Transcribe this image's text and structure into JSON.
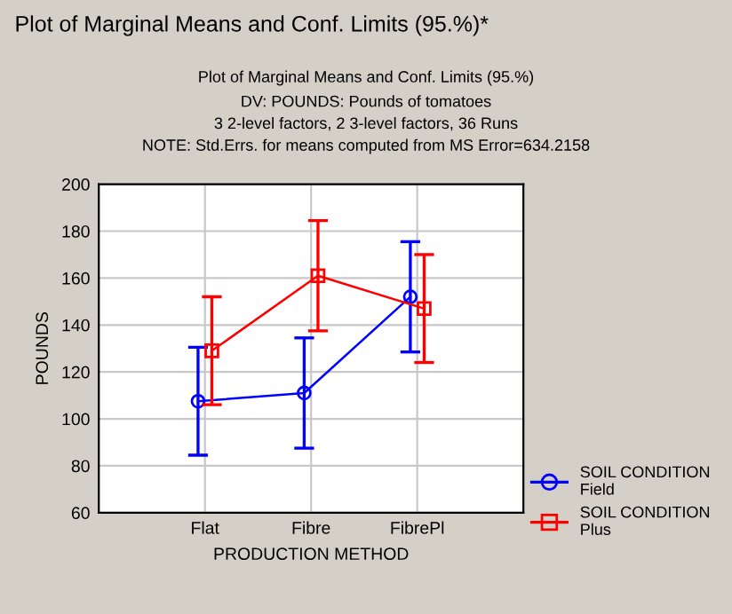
{
  "chart_data": {
    "type": "line",
    "title": "Plot of Marginal Means and Conf. Limits (95.%)",
    "subtitle": "DV: POUNDS: Pounds of tomatoes\n3 2-level factors, 2 3-level factors, 36 Runs\nNOTE: Std.Errs. for means computed from MS Error=634.2158",
    "annotations": [
      "Plot of Marginal Means and Conf. Limits (95.%)*"
    ],
    "xlabel": "PRODUCTION METHOD",
    "ylabel": "POUNDS",
    "categories": [
      "Flat",
      "Fibre",
      "FibrePl"
    ],
    "series": [
      {
        "name": "SOIL CONDITION\nField",
        "color": "#0000ff",
        "marker": "circle",
        "values": [
          107.5,
          111,
          152
        ],
        "errors": [
          23,
          23.5,
          23.5
        ]
      },
      {
        "name": "SOIL CONDITION\nPlus",
        "color": "#ff0000",
        "marker": "square",
        "values": [
          129,
          161,
          147
        ],
        "errors": [
          23,
          23.5,
          23
        ]
      }
    ],
    "ylim": [
      60,
      200
    ],
    "yticks": [
      60,
      80,
      100,
      120,
      140,
      160,
      180,
      200
    ],
    "grid": true,
    "legend": "bottom right"
  }
}
